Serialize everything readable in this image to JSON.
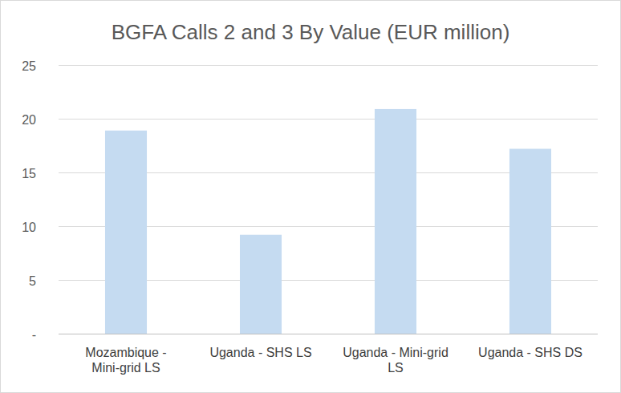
{
  "chart_data": {
    "type": "bar",
    "title": "BGFA Calls 2 and 3 By Value (EUR million)",
    "categories": [
      "Mozambique - Mini-grid LS",
      "Uganda - SHS LS",
      "Uganda - Mini-grid LS",
      "Uganda - SHS DS"
    ],
    "values": [
      18.9,
      9.2,
      20.9,
      17.2
    ],
    "color": "#c5dbf1",
    "ylim": [
      0,
      25
    ],
    "yticks": [
      {
        "value": 0,
        "label": "-"
      },
      5,
      10,
      15,
      20,
      25
    ],
    "grid": true
  }
}
